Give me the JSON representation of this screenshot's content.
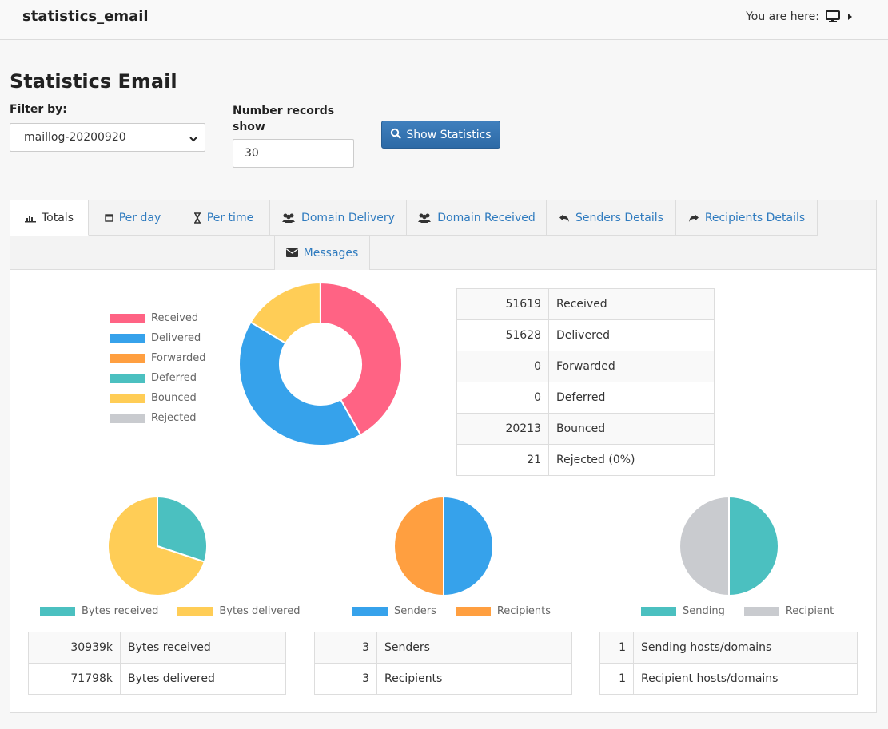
{
  "app": {
    "title": "statistics_email",
    "breadcrumb_label": "You are here:"
  },
  "page": {
    "title": "Statistics Email"
  },
  "filters": {
    "filter_label": "Filter by:",
    "filter_value": "maillog-20200920",
    "records_label": "Number records show",
    "records_value": "30",
    "show_button": "Show Statistics"
  },
  "tabs": [
    {
      "label": "Totals",
      "icon": "bar-chart-icon",
      "active": true
    },
    {
      "label": "Per day",
      "icon": "calendar-icon"
    },
    {
      "label": "Per time",
      "icon": "hourglass-icon"
    },
    {
      "label": "Domain Delivery",
      "icon": "users-icon"
    },
    {
      "label": "Domain Received",
      "icon": "users-icon"
    },
    {
      "label": "Senders Details",
      "icon": "reply-icon"
    },
    {
      "label": "Recipients Details",
      "icon": "share-icon"
    },
    {
      "label": "Messages",
      "icon": "envelope-icon"
    }
  ],
  "colors": {
    "received": "#ff6384",
    "delivered": "#36a2eb",
    "forwarded": "#ff9f40",
    "deferred": "#4bc0c0",
    "bounced": "#ffcd56",
    "rejected": "#c9cbcf"
  },
  "totals": {
    "legend": [
      "Received",
      "Delivered",
      "Forwarded",
      "Deferred",
      "Bounced",
      "Rejected"
    ],
    "rows": [
      {
        "value": "51619",
        "label": "Received"
      },
      {
        "value": "51628",
        "label": "Delivered"
      },
      {
        "value": "0",
        "label": "Forwarded"
      },
      {
        "value": "0",
        "label": "Deferred"
      },
      {
        "value": "20213",
        "label": "Bounced"
      },
      {
        "value": "21",
        "label": "Rejected (0%)"
      }
    ]
  },
  "bytes": {
    "legend": [
      "Bytes received",
      "Bytes delivered"
    ],
    "rows": [
      {
        "value": "30939k",
        "label": "Bytes received"
      },
      {
        "value": "71798k",
        "label": "Bytes delivered"
      }
    ]
  },
  "people": {
    "legend": [
      "Senders",
      "Recipients"
    ],
    "rows": [
      {
        "value": "3",
        "label": "Senders"
      },
      {
        "value": "3",
        "label": "Recipients"
      }
    ]
  },
  "hosts": {
    "legend": [
      "Sending",
      "Recipient"
    ],
    "rows": [
      {
        "value": "1",
        "label": "Sending hosts/domains"
      },
      {
        "value": "1",
        "label": "Recipient hosts/domains"
      }
    ]
  },
  "chart_data": [
    {
      "type": "pie",
      "subtype": "doughnut",
      "categories": [
        "Received",
        "Delivered",
        "Forwarded",
        "Deferred",
        "Bounced",
        "Rejected"
      ],
      "values": [
        51619,
        51628,
        0,
        0,
        20213,
        21
      ]
    },
    {
      "type": "pie",
      "categories": [
        "Bytes received",
        "Bytes delivered"
      ],
      "values": [
        30939,
        71798
      ]
    },
    {
      "type": "pie",
      "categories": [
        "Senders",
        "Recipients"
      ],
      "values": [
        3,
        3
      ]
    },
    {
      "type": "pie",
      "categories": [
        "Sending",
        "Recipient"
      ],
      "values": [
        1,
        1
      ]
    }
  ]
}
